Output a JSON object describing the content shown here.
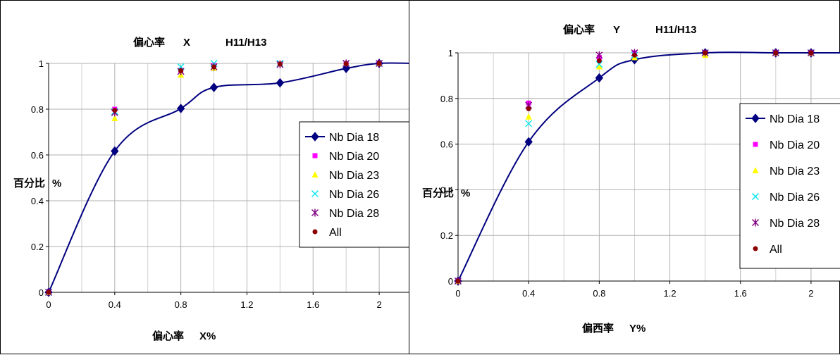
{
  "chart_data": [
    {
      "type": "line",
      "title_parts": [
        "偏心率",
        "X",
        "H11/H13"
      ],
      "xlabel_parts": [
        "偏心率",
        "X%"
      ],
      "ylabel_parts": [
        "百分比",
        "%"
      ],
      "xlim": [
        0,
        2.2
      ],
      "ylim": [
        0,
        1
      ],
      "xticks": [
        "0",
        "0.4",
        "0.8",
        "1.2",
        "1.6",
        "2"
      ],
      "yticks": [
        "0",
        "0.2",
        "0.4",
        "0.6",
        "0.8",
        "1"
      ],
      "grid": true,
      "legend_position": "right",
      "series": [
        {
          "name": "Nb Dia 18",
          "color": "#000080",
          "marker": "diamond",
          "line": true,
          "x": [
            0,
            0.4,
            0.8,
            1.0,
            1.4,
            1.8,
            2.0
          ],
          "y": [
            0,
            0.617,
            0.803,
            0.895,
            0.915,
            0.978,
            1.0
          ]
        },
        {
          "name": "Nb Dia 20",
          "color": "#ff00ff",
          "marker": "square",
          "line": false,
          "x": [
            0,
            0.4,
            0.8,
            1.0,
            1.4,
            1.8,
            2.0
          ],
          "y": [
            0,
            0.8,
            0.97,
            0.99,
            1.0,
            1.0,
            1.0
          ]
        },
        {
          "name": "Nb Dia 23",
          "color": "#ffff00",
          "marker": "triangle",
          "line": false,
          "x": [
            0,
            0.4,
            0.8,
            1.0,
            1.4,
            1.8,
            2.0
          ],
          "y": [
            0,
            0.76,
            0.95,
            0.98,
            1.0,
            1.0,
            1.0
          ]
        },
        {
          "name": "Nb Dia 26",
          "color": "#00e5ee",
          "marker": "x",
          "line": false,
          "x": [
            0,
            0.4,
            0.8,
            1.0,
            1.4,
            1.8,
            2.0
          ],
          "y": [
            0,
            0.79,
            0.985,
            1.0,
            1.0,
            1.0,
            1.0
          ]
        },
        {
          "name": "Nb Dia 28",
          "color": "#800080",
          "marker": "star",
          "line": false,
          "x": [
            0,
            0.4,
            0.8,
            1.0,
            1.4,
            1.8,
            2.0
          ],
          "y": [
            0,
            0.785,
            0.965,
            0.985,
            0.995,
            1.0,
            1.0
          ]
        },
        {
          "name": "All",
          "color": "#8b0000",
          "marker": "circle",
          "line": false,
          "x": [
            0,
            0.4,
            0.8,
            1.0,
            1.4,
            1.8,
            2.0
          ],
          "y": [
            0,
            0.795,
            0.968,
            0.985,
            0.997,
            0.998,
            1.0
          ]
        }
      ]
    },
    {
      "type": "line",
      "title_parts": [
        "偏心率",
        "Y",
        "H11/H13"
      ],
      "xlabel_parts": [
        "偏西率",
        "Y%"
      ],
      "ylabel_parts": [
        "百分比",
        "%"
      ],
      "xlim": [
        0,
        2.2
      ],
      "ylim": [
        0,
        1
      ],
      "xticks": [
        "0",
        "0.4",
        "0.8",
        "1.2",
        "1.6",
        "2"
      ],
      "yticks": [
        "0",
        "0.2",
        "0.4",
        "0.6",
        "0.8",
        "1"
      ],
      "grid": true,
      "legend_position": "right",
      "series": [
        {
          "name": "Nb Dia 18",
          "color": "#000080",
          "marker": "diamond",
          "line": true,
          "x": [
            0,
            0.4,
            0.8,
            1.0,
            1.4,
            1.8,
            2.0
          ],
          "y": [
            0,
            0.61,
            0.89,
            0.97,
            1.0,
            1.0,
            1.0
          ]
        },
        {
          "name": "Nb Dia 20",
          "color": "#ff00ff",
          "marker": "square",
          "line": false,
          "x": [
            0,
            0.4,
            0.8,
            1.0,
            1.4,
            1.8,
            2.0
          ],
          "y": [
            0,
            0.78,
            0.98,
            1.0,
            1.0,
            1.0,
            1.0
          ]
        },
        {
          "name": "Nb Dia 23",
          "color": "#ffff00",
          "marker": "triangle",
          "line": false,
          "x": [
            0,
            0.4,
            0.8,
            1.0,
            1.4,
            1.8,
            2.0
          ],
          "y": [
            0,
            0.72,
            0.94,
            0.98,
            0.99,
            1.0,
            1.0
          ]
        },
        {
          "name": "Nb Dia 26",
          "color": "#00e5ee",
          "marker": "x",
          "line": false,
          "x": [
            0,
            0.4,
            0.8,
            1.0,
            1.4,
            1.8,
            2.0
          ],
          "y": [
            0,
            0.69,
            0.95,
            0.99,
            1.0,
            1.0,
            1.0
          ]
        },
        {
          "name": "Nb Dia 28",
          "color": "#800080",
          "marker": "star",
          "line": false,
          "x": [
            0,
            0.4,
            0.8,
            1.0,
            1.4,
            1.8,
            2.0
          ],
          "y": [
            0,
            0.77,
            0.99,
            1.0,
            1.0,
            1.0,
            1.0
          ]
        },
        {
          "name": "All",
          "color": "#8b0000",
          "marker": "circle",
          "line": false,
          "x": [
            0,
            0.4,
            0.8,
            1.0,
            1.4,
            1.8,
            2.0
          ],
          "y": [
            0,
            0.755,
            0.965,
            0.99,
            1.0,
            1.0,
            1.0
          ]
        }
      ]
    }
  ]
}
